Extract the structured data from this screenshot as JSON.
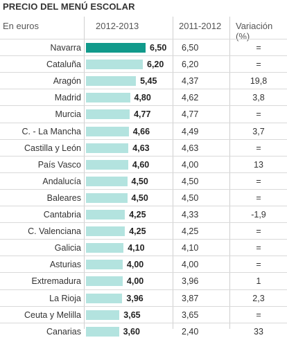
{
  "title": "PRECIO DEL MENÚ ESCOLAR",
  "headers": {
    "region": "En euros",
    "current": "2012-2013",
    "previous": "2011-2012",
    "variation": "Variación (%)"
  },
  "colors": {
    "highlight": "#119a8b",
    "bar": "#b3e3df"
  },
  "chart_data": {
    "type": "bar",
    "title": "PRECIO DEL MENÚ ESCOLAR",
    "xlim": [
      0,
      6.5
    ],
    "categories": [
      "Navarra",
      "Cataluña",
      "Aragón",
      "Madrid",
      "Murcia",
      "C. - La Mancha",
      "Castilla y León",
      "País Vasco",
      "Andalucía",
      "Baleares",
      "Cantabria",
      "C. Valenciana",
      "Galicia",
      "Asturias",
      "Extremadura",
      "La Rioja",
      "Ceuta y Melilla",
      "Canarias"
    ],
    "values": [
      6.5,
      6.2,
      5.45,
      4.8,
      4.77,
      4.66,
      4.63,
      4.6,
      4.5,
      4.5,
      4.25,
      4.25,
      4.1,
      4.0,
      4.0,
      3.96,
      3.65,
      3.6
    ],
    "value_labels": [
      "6,50",
      "6,20",
      "5,45",
      "4,80",
      "4,77",
      "4,66",
      "4,63",
      "4,60",
      "4,50",
      "4,50",
      "4,25",
      "4,25",
      "4,10",
      "4,00",
      "4,00",
      "3,96",
      "3,65",
      "3,60"
    ],
    "previous": [
      "6,50",
      "6,20",
      "4,37",
      "4,62",
      "4,77",
      "4,49",
      "4,63",
      "4,00",
      "4,50",
      "4,50",
      "4,33",
      "4,25",
      "4,10",
      "4,00",
      "3,96",
      "3,87",
      "3,65",
      "2,40"
    ],
    "variation": [
      "=",
      "=",
      "19,8",
      "3,8",
      "=",
      "3,7",
      "=",
      "13",
      "=",
      "=",
      "-1,9",
      "=",
      "=",
      "=",
      "1",
      "2,3",
      "=",
      "33"
    ]
  }
}
